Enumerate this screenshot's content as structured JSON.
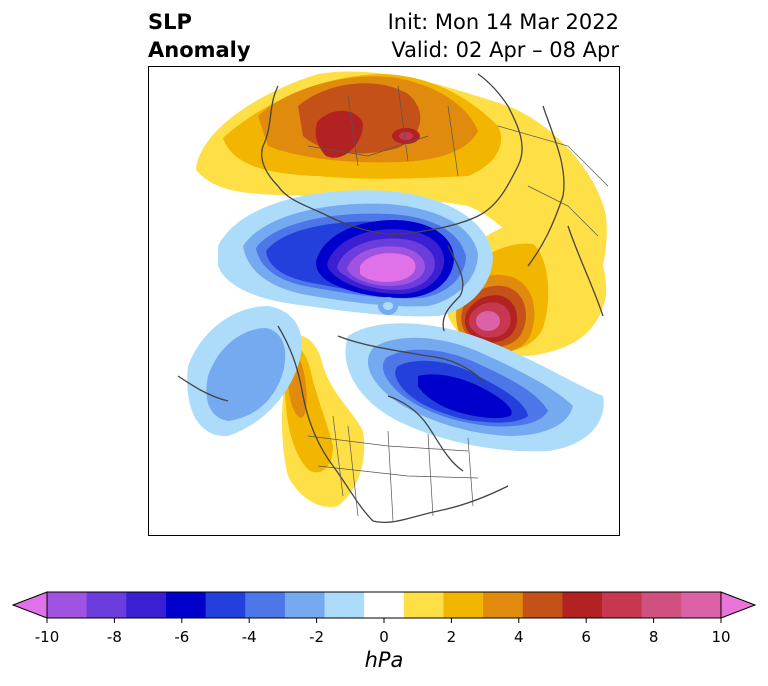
{
  "title": {
    "left_line1": "SLP",
    "left_line2": "Anomaly",
    "init": "Init: Mon 14 Mar 2022",
    "valid": "Valid: 02 Apr – 08 Apr"
  },
  "colorbar": {
    "unit": "hPa",
    "ticks": [
      "-10",
      "-8",
      "-6",
      "-4",
      "-2",
      "0",
      "2",
      "4",
      "6",
      "8",
      "10"
    ],
    "colors": [
      "#e071e8",
      "#a052e0",
      "#6a3ddc",
      "#3b1fd2",
      "#0000cc",
      "#2440dc",
      "#4d77e8",
      "#76aaf0",
      "#addcfb",
      "#ffffff",
      "#ffdf46",
      "#f2b500",
      "#e08a0e",
      "#c45218",
      "#b22222",
      "#c73850",
      "#d05080",
      "#dc62a8",
      "#e876d8"
    ]
  }
}
